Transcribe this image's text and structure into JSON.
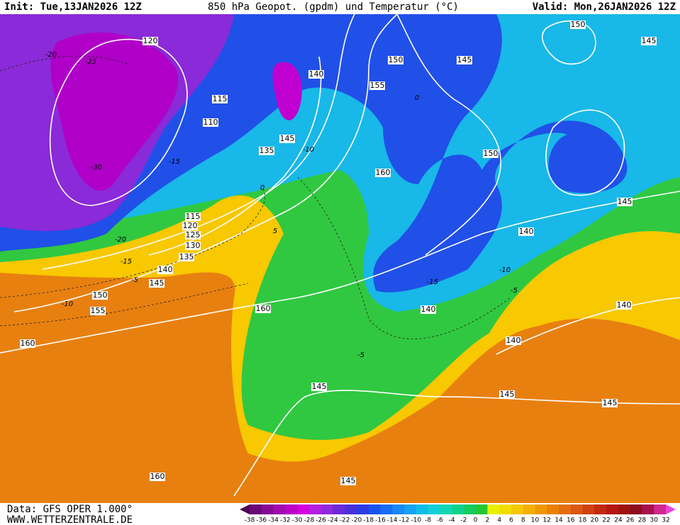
{
  "header": {
    "init": "Init: Tue,13JAN2026 12Z",
    "title": "850 hPa Geopot. (gpdm) und Temperatur (°C)",
    "valid": "Valid: Mon,26JAN2026 12Z"
  },
  "footer": {
    "data": "Data: GFS OPER 1.000°",
    "site": "WWW.WETTERZENTRALE.DE"
  },
  "geopotential_labels": [
    "120",
    "140",
    "150",
    "145",
    "150",
    "145",
    "155",
    "115",
    "110",
    "145",
    "135",
    "160",
    "150",
    "145",
    "115",
    "120",
    "125",
    "130",
    "135",
    "140",
    "145",
    "140",
    "150",
    "155",
    "160",
    "140",
    "140",
    "160",
    "140",
    "145",
    "145",
    "145",
    "160",
    "145"
  ],
  "temperature_labels": [
    "-20",
    "-25",
    "-30",
    "-20",
    "-15",
    "-10",
    "-5",
    "0",
    "5",
    "-15",
    "-10",
    "-5",
    "-5",
    "0",
    "-10",
    "-15"
  ],
  "colorbar": {
    "ticks": [
      -38,
      -36,
      -34,
      -32,
      -30,
      -28,
      -26,
      -24,
      -22,
      -20,
      -18,
      -16,
      -14,
      -12,
      -10,
      -8,
      -6,
      -4,
      -2,
      0,
      2,
      4,
      6,
      8,
      10,
      12,
      14,
      16,
      18,
      20,
      22,
      24,
      26,
      28,
      30,
      32
    ],
    "colors": [
      "#4a0050",
      "#6a0878",
      "#860a96",
      "#a00cb0",
      "#bc00c8",
      "#d000e0",
      "#b41ee0",
      "#9028dc",
      "#6c2ad8",
      "#4a30d8",
      "#2c3ce4",
      "#1a52f0",
      "#1a6cf8",
      "#1888f8",
      "#16a2f0",
      "#10bce8",
      "#10d0d8",
      "#10d6b4",
      "#10d28c",
      "#14cc60",
      "#22c834",
      "#e8f000",
      "#f4dc00",
      "#f6c800",
      "#f4b000",
      "#f09800",
      "#ec8000",
      "#e46c10",
      "#dc5810",
      "#d04010",
      "#c42810",
      "#b41810",
      "#a01010",
      "#8c0c20",
      "#a81050",
      "#d02890",
      "#f040d8"
    ]
  }
}
